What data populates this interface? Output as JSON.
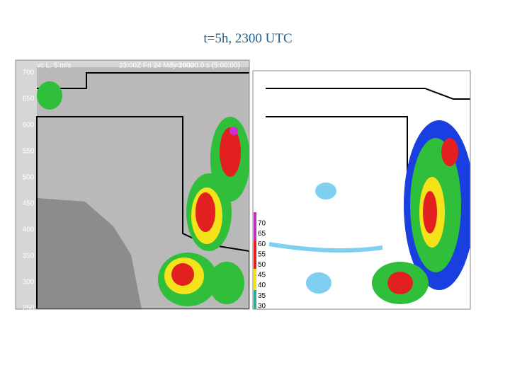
{
  "title": "t=5h, 2300 UTC",
  "left_panel": {
    "header": [
      "vc L, 5 m/s",
      "23:00Z Fri 24 May 2002",
      "T=18000.0 s (5:00:00)"
    ],
    "y_labels": [
      "700",
      "650",
      "600",
      "550",
      "500",
      "450",
      "400",
      "350",
      "300",
      "250"
    ]
  },
  "right_panel": {
    "legend_labels": [
      "70",
      "65",
      "60",
      "55",
      "50",
      "45",
      "40",
      "35",
      "30"
    ]
  }
}
